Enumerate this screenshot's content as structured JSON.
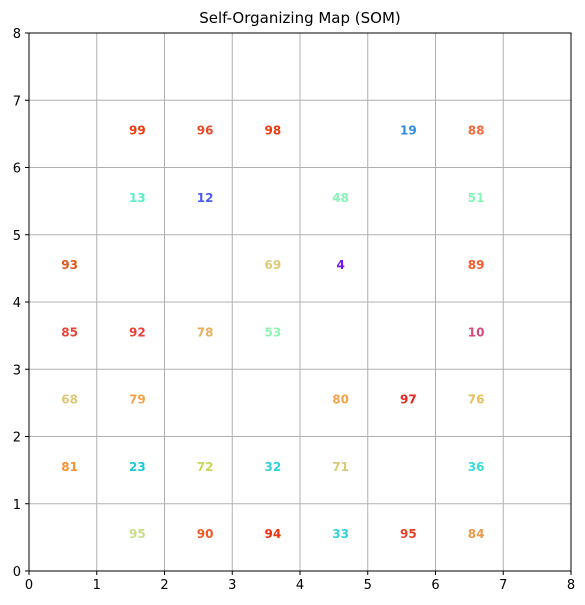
{
  "chart_data": {
    "type": "scatter",
    "title": "Self-Organizing Map (SOM)",
    "xlabel": "",
    "ylabel": "",
    "xlim": [
      0,
      8
    ],
    "ylim": [
      0,
      8
    ],
    "x_ticks": [
      "0",
      "1",
      "2",
      "3",
      "4",
      "5",
      "6",
      "7",
      "8"
    ],
    "y_ticks": [
      "0",
      "1",
      "2",
      "3",
      "4",
      "5",
      "6",
      "7",
      "8"
    ],
    "grid": true,
    "labels": [
      {
        "text": "99",
        "x": 1.6,
        "y": 6.55,
        "color": "#f03a10"
      },
      {
        "text": "96",
        "x": 2.6,
        "y": 6.55,
        "color": "#e84c2a"
      },
      {
        "text": "98",
        "x": 3.6,
        "y": 6.55,
        "color": "#f03a10"
      },
      {
        "text": "19",
        "x": 5.6,
        "y": 6.55,
        "color": "#2e8be3"
      },
      {
        "text": "88",
        "x": 6.6,
        "y": 6.55,
        "color": "#fa6a3c"
      },
      {
        "text": "13",
        "x": 1.6,
        "y": 5.55,
        "color": "#5cf0c8"
      },
      {
        "text": "12",
        "x": 2.6,
        "y": 5.55,
        "color": "#4a5cf0"
      },
      {
        "text": "48",
        "x": 4.6,
        "y": 5.55,
        "color": "#86f5b8"
      },
      {
        "text": "51",
        "x": 6.6,
        "y": 5.55,
        "color": "#86f5b8"
      },
      {
        "text": "93",
        "x": 0.6,
        "y": 4.55,
        "color": "#e2571a"
      },
      {
        "text": "69",
        "x": 3.6,
        "y": 4.55,
        "color": "#dccb76"
      },
      {
        "text": "4",
        "x": 4.6,
        "y": 4.55,
        "color": "#7418e8"
      },
      {
        "text": "89",
        "x": 6.6,
        "y": 4.55,
        "color": "#f55a28"
      },
      {
        "text": "85",
        "x": 0.6,
        "y": 3.55,
        "color": "#e8453a"
      },
      {
        "text": "92",
        "x": 1.6,
        "y": 3.55,
        "color": "#e8403a"
      },
      {
        "text": "78",
        "x": 2.6,
        "y": 3.55,
        "color": "#e6b060"
      },
      {
        "text": "53",
        "x": 3.6,
        "y": 3.55,
        "color": "#8ef5b0"
      },
      {
        "text": "10",
        "x": 6.6,
        "y": 3.55,
        "color": "#d94a78"
      },
      {
        "text": "68",
        "x": 0.6,
        "y": 2.55,
        "color": "#dcc878"
      },
      {
        "text": "79",
        "x": 1.6,
        "y": 2.55,
        "color": "#f7a24a"
      },
      {
        "text": "80",
        "x": 4.6,
        "y": 2.55,
        "color": "#f7a24a"
      },
      {
        "text": "97",
        "x": 5.6,
        "y": 2.55,
        "color": "#e8281c"
      },
      {
        "text": "76",
        "x": 6.6,
        "y": 2.55,
        "color": "#e6c05a"
      },
      {
        "text": "81",
        "x": 0.6,
        "y": 1.55,
        "color": "#f79236"
      },
      {
        "text": "23",
        "x": 1.6,
        "y": 1.55,
        "color": "#1ec8d8"
      },
      {
        "text": "72",
        "x": 2.6,
        "y": 1.55,
        "color": "#c8d65a"
      },
      {
        "text": "32",
        "x": 3.6,
        "y": 1.55,
        "color": "#2ed2d8"
      },
      {
        "text": "71",
        "x": 4.6,
        "y": 1.55,
        "color": "#dcc878"
      },
      {
        "text": "36",
        "x": 6.6,
        "y": 1.55,
        "color": "#36dcdc"
      },
      {
        "text": "95",
        "x": 1.6,
        "y": 0.55,
        "color": "#c8dc8c"
      },
      {
        "text": "90",
        "x": 2.6,
        "y": 0.55,
        "color": "#f25a28"
      },
      {
        "text": "94",
        "x": 3.6,
        "y": 0.55,
        "color": "#f0300e"
      },
      {
        "text": "33",
        "x": 4.6,
        "y": 0.55,
        "color": "#2ed2d8"
      },
      {
        "text": "95",
        "x": 5.6,
        "y": 0.55,
        "color": "#e8402a"
      },
      {
        "text": "84",
        "x": 6.6,
        "y": 0.55,
        "color": "#e89a4a"
      }
    ]
  }
}
